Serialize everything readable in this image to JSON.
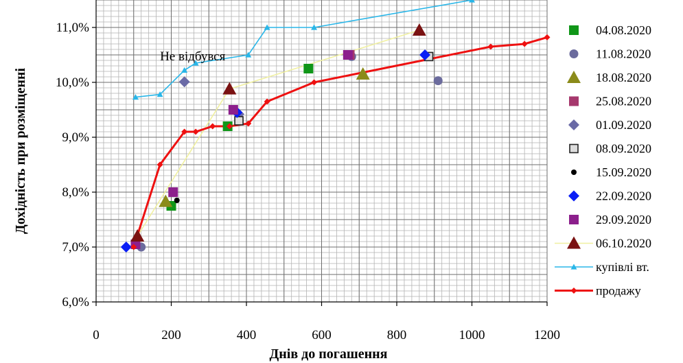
{
  "chart_data": {
    "type": "scatter",
    "title": "",
    "xlabel": "Днів до погашення",
    "ylabel": "Дохідність при розміщенні",
    "xlim": [
      0,
      1200
    ],
    "ylim": [
      6.0,
      11.5
    ],
    "x_ticks": [
      0,
      200,
      400,
      600,
      800,
      1000,
      1200
    ],
    "x_tick_labels": [
      "0",
      "200",
      "400",
      "600",
      "800",
      "1000",
      "1200"
    ],
    "y_ticks": [
      6.0,
      7.0,
      8.0,
      9.0,
      10.0,
      11.0
    ],
    "y_tick_labels": [
      "6,0%",
      "7,0%",
      "8,0%",
      "9,0%",
      "10,0%",
      "11,0%"
    ],
    "grid": true,
    "legend_position": "right",
    "annotation": {
      "text": "Не відбувся",
      "x": 170,
      "y": 10.4
    },
    "series": [
      {
        "name": "04.08.2020",
        "marker": "square",
        "color": "#109618",
        "points": [
          [
            200,
            7.75
          ],
          [
            350,
            9.2
          ],
          [
            565,
            10.25
          ]
        ]
      },
      {
        "name": "11.08.2020",
        "marker": "circle",
        "color": "#6b6b9d",
        "points": [
          [
            120,
            7.0
          ],
          [
            680,
            10.47
          ],
          [
            910,
            10.03
          ]
        ]
      },
      {
        "name": "18.08.2020",
        "marker": "triangle",
        "color": "#8b8b1a",
        "points": [
          [
            185,
            7.83
          ],
          [
            710,
            10.15
          ]
        ]
      },
      {
        "name": "25.08.2020",
        "marker": "square",
        "color": "#a6386d",
        "points": [
          [
            675,
            10.5
          ]
        ]
      },
      {
        "name": "01.09.2020",
        "marker": "diamond",
        "color": "#6a6aa6",
        "points": [
          [
            235,
            10.01
          ],
          [
            380,
            9.42
          ]
        ]
      },
      {
        "name": "08.09.2020",
        "marker": "square-open",
        "color": "#444444",
        "points": [
          [
            380,
            9.3
          ],
          [
            885,
            10.47
          ]
        ]
      },
      {
        "name": "15.09.2020",
        "marker": "dot",
        "color": "#000000",
        "points": [
          [
            215,
            7.85
          ]
        ]
      },
      {
        "name": "22.09.2020",
        "marker": "diamond",
        "color": "#0a1ef5",
        "points": [
          [
            80,
            7.0
          ],
          [
            375,
            9.45
          ],
          [
            875,
            10.5
          ]
        ]
      },
      {
        "name": "29.09.2020",
        "marker": "square",
        "color": "#8c1f8c",
        "points": [
          [
            105,
            7.05
          ],
          [
            205,
            8.0
          ],
          [
            365,
            9.5
          ],
          [
            670,
            10.5
          ]
        ]
      },
      {
        "name": "06.10.2020",
        "marker": "triangle",
        "color": "#7a1212",
        "line": true,
        "line_color": "#f0f0a0",
        "points": [
          [
            110,
            7.2
          ],
          [
            355,
            9.88
          ],
          [
            860,
            10.95
          ]
        ]
      },
      {
        "name": "купівлі вт.",
        "marker": "triangle-small",
        "color": "#29b6e8",
        "line": true,
        "line_color": "#29b6e8",
        "points": [
          [
            105,
            9.73
          ],
          [
            170,
            9.78
          ],
          [
            235,
            10.22
          ],
          [
            265,
            10.35
          ],
          [
            405,
            10.5
          ],
          [
            455,
            11.0
          ],
          [
            580,
            11.0
          ],
          [
            1000,
            11.5
          ]
        ]
      },
      {
        "name": "продажу",
        "marker": "diamond-small",
        "color": "#ee1111",
        "line": true,
        "line_color": "#ee1111",
        "points": [
          [
            100,
            7.0
          ],
          [
            170,
            8.5
          ],
          [
            235,
            9.1
          ],
          [
            265,
            9.1
          ],
          [
            310,
            9.2
          ],
          [
            355,
            9.2
          ],
          [
            405,
            9.25
          ],
          [
            455,
            9.65
          ],
          [
            580,
            10.0
          ],
          [
            1050,
            10.65
          ],
          [
            1140,
            10.7
          ],
          [
            1200,
            10.82
          ]
        ]
      }
    ]
  }
}
